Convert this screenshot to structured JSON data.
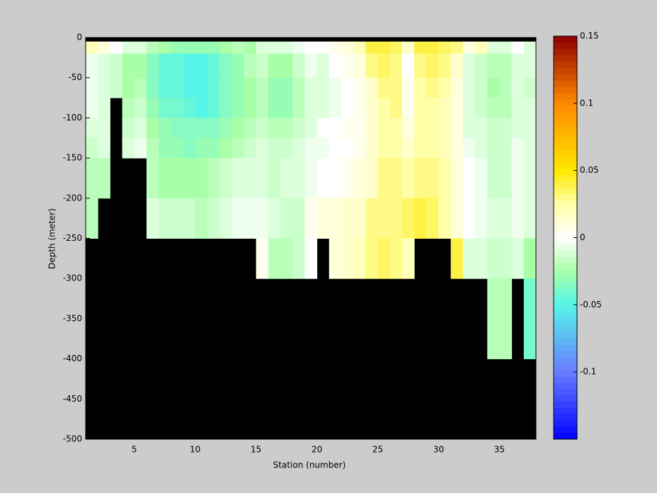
{
  "chart_data": {
    "type": "heatmap",
    "xlabel": "Station (number)",
    "ylabel": "Depth (meter)",
    "x": [
      1,
      2,
      3,
      4,
      5,
      6,
      7,
      8,
      9,
      10,
      11,
      12,
      13,
      14,
      15,
      16,
      17,
      18,
      19,
      20,
      21,
      22,
      23,
      24,
      25,
      26,
      27,
      28,
      29,
      30,
      31,
      32,
      33,
      34,
      35,
      36,
      37,
      38
    ],
    "depth": [
      0,
      -5,
      -20,
      -50,
      -75,
      -100,
      -125,
      -150,
      -200,
      -250,
      -300,
      -400,
      -500
    ],
    "values": [
      [
        null,
        null,
        null,
        null,
        null,
        null,
        null,
        null,
        null,
        null,
        null,
        null,
        null,
        null,
        null,
        null,
        null,
        null,
        null,
        null,
        null,
        null,
        null,
        null,
        null,
        null,
        null,
        null,
        null,
        null,
        null,
        null,
        null,
        null,
        null,
        null,
        null
      ],
      [
        0.02,
        0.01,
        0.0,
        -0.01,
        -0.01,
        -0.02,
        -0.025,
        -0.03,
        -0.03,
        -0.03,
        -0.03,
        -0.025,
        -0.02,
        -0.025,
        -0.01,
        -0.01,
        -0.01,
        -0.005,
        0.0,
        0.0,
        0.005,
        0.01,
        0.02,
        0.04,
        0.04,
        0.035,
        0.015,
        0.04,
        0.04,
        0.035,
        0.03,
        0.01,
        0.02,
        -0.01,
        -0.01,
        0.0,
        -0.01
      ],
      [
        -0.005,
        -0.01,
        -0.015,
        -0.025,
        -0.025,
        -0.035,
        -0.045,
        -0.045,
        -0.05,
        -0.05,
        -0.045,
        -0.035,
        -0.03,
        -0.02,
        -0.015,
        -0.025,
        -0.025,
        -0.015,
        -0.005,
        -0.01,
        0.0,
        0.005,
        0.01,
        0.03,
        0.035,
        0.03,
        0.0,
        0.03,
        0.035,
        0.03,
        0.015,
        -0.01,
        -0.015,
        -0.02,
        -0.02,
        -0.01,
        -0.01
      ],
      [
        -0.005,
        -0.01,
        -0.015,
        -0.025,
        -0.02,
        -0.035,
        -0.045,
        -0.045,
        -0.05,
        -0.05,
        -0.045,
        -0.035,
        -0.03,
        -0.025,
        -0.02,
        -0.03,
        -0.03,
        -0.02,
        -0.01,
        -0.01,
        -0.005,
        0.0,
        0.005,
        0.015,
        0.03,
        0.03,
        0.005,
        0.025,
        0.03,
        0.025,
        0.01,
        -0.01,
        -0.015,
        -0.025,
        -0.02,
        -0.01,
        -0.015
      ],
      [
        -0.005,
        -0.01,
        null,
        -0.02,
        -0.015,
        -0.03,
        -0.04,
        -0.04,
        -0.045,
        -0.05,
        -0.045,
        -0.035,
        -0.03,
        -0.025,
        -0.02,
        -0.03,
        -0.03,
        -0.02,
        -0.01,
        -0.01,
        -0.005,
        0.0,
        0.005,
        0.015,
        0.025,
        0.03,
        0.005,
        0.025,
        0.025,
        0.02,
        0.01,
        -0.01,
        -0.015,
        -0.02,
        -0.02,
        -0.01,
        -0.01
      ],
      [
        -0.01,
        -0.01,
        null,
        -0.015,
        -0.01,
        -0.025,
        -0.03,
        -0.035,
        -0.035,
        -0.035,
        -0.035,
        -0.03,
        -0.025,
        -0.02,
        -0.015,
        -0.02,
        -0.02,
        -0.015,
        -0.01,
        0.0,
        0.0,
        0.005,
        0.005,
        0.015,
        0.025,
        0.025,
        0.01,
        0.025,
        0.025,
        0.02,
        0.01,
        -0.01,
        -0.01,
        -0.015,
        -0.015,
        -0.01,
        -0.01
      ],
      [
        -0.015,
        -0.01,
        null,
        -0.01,
        -0.005,
        -0.02,
        -0.03,
        -0.03,
        -0.035,
        -0.03,
        -0.03,
        -0.025,
        -0.02,
        -0.015,
        -0.01,
        -0.015,
        -0.015,
        -0.01,
        -0.005,
        -0.005,
        0.0,
        0.0,
        0.005,
        0.015,
        0.025,
        0.025,
        0.015,
        0.025,
        0.025,
        0.02,
        0.01,
        -0.005,
        -0.01,
        -0.015,
        -0.015,
        -0.005,
        -0.01
      ],
      [
        -0.02,
        -0.02,
        null,
        null,
        null,
        -0.02,
        -0.025,
        -0.025,
        -0.025,
        -0.025,
        -0.02,
        -0.015,
        -0.01,
        -0.01,
        -0.01,
        -0.015,
        -0.01,
        -0.01,
        -0.005,
        0.0,
        0.0,
        0.005,
        0.01,
        0.015,
        0.03,
        0.03,
        0.025,
        0.03,
        0.03,
        0.025,
        0.01,
        0.0,
        -0.005,
        -0.015,
        -0.015,
        -0.005,
        -0.01
      ],
      [
        -0.02,
        null,
        null,
        null,
        null,
        -0.01,
        -0.015,
        -0.015,
        -0.015,
        -0.02,
        -0.015,
        -0.01,
        -0.005,
        -0.005,
        -0.005,
        -0.01,
        -0.015,
        -0.015,
        0.005,
        0.01,
        0.01,
        0.015,
        0.015,
        0.03,
        0.03,
        0.03,
        0.035,
        0.04,
        0.035,
        0.025,
        0.01,
        0.0,
        -0.005,
        -0.01,
        -0.01,
        -0.005,
        -0.01
      ],
      [
        null,
        null,
        null,
        null,
        null,
        null,
        null,
        null,
        null,
        null,
        null,
        null,
        null,
        null,
        0.005,
        -0.02,
        -0.02,
        -0.015,
        0.0,
        null,
        0.01,
        0.015,
        0.02,
        0.03,
        0.035,
        0.03,
        0.02,
        null,
        null,
        null,
        0.04,
        -0.01,
        -0.01,
        -0.015,
        -0.015,
        -0.01,
        -0.025
      ],
      [
        null,
        null,
        null,
        null,
        null,
        null,
        null,
        null,
        null,
        null,
        null,
        null,
        null,
        null,
        null,
        null,
        null,
        null,
        null,
        null,
        null,
        null,
        null,
        null,
        null,
        null,
        null,
        null,
        null,
        null,
        null,
        null,
        null,
        -0.02,
        -0.02,
        null,
        -0.04
      ],
      [
        null,
        null,
        null,
        null,
        null,
        null,
        null,
        null,
        null,
        null,
        null,
        null,
        null,
        null,
        null,
        null,
        null,
        null,
        null,
        null,
        null,
        null,
        null,
        null,
        null,
        null,
        null,
        null,
        null,
        null,
        null,
        null,
        null,
        null,
        null,
        null,
        null
      ]
    ],
    "xlim": [
      1,
      38
    ],
    "xticks": [
      5,
      10,
      15,
      20,
      25,
      30,
      35
    ],
    "ylim": [
      -500,
      0
    ],
    "yticks": [
      0,
      -50,
      -100,
      -150,
      -200,
      -250,
      -300,
      -350,
      -400,
      -450,
      -500
    ],
    "clim": [
      -0.15,
      0.15
    ],
    "cticks": [
      0.15,
      0.1,
      0.05,
      0,
      -0.05,
      -0.1
    ],
    "colormap": {
      "stops": [
        -0.15,
        -0.1,
        -0.05,
        -0.025,
        0,
        0.025,
        0.05,
        0.1,
        0.15
      ],
      "colors": [
        "#0000ff",
        "#6a7cff",
        "#55f5e8",
        "#a8ffa8",
        "#ffffff",
        "#ffffa8",
        "#ffe800",
        "#ff8a00",
        "#8c0000"
      ]
    },
    "missing_color": "#000000"
  }
}
